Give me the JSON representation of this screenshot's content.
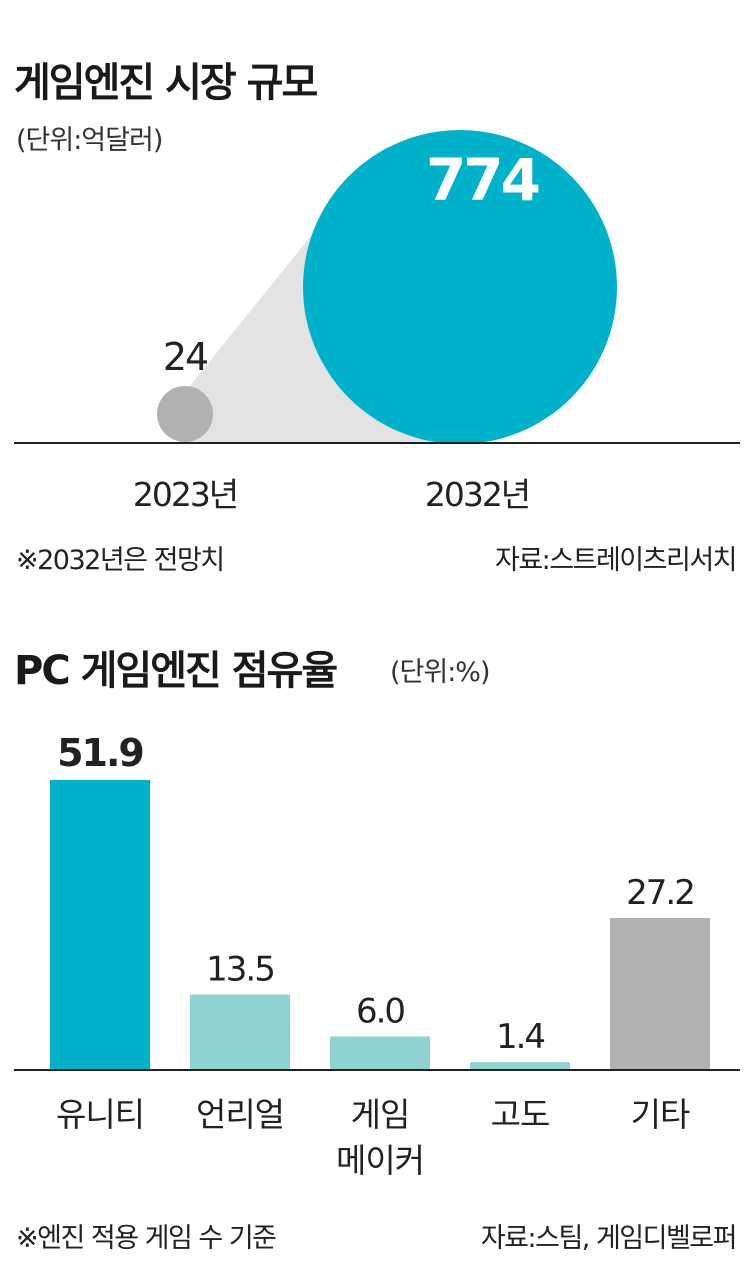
{
  "chart1": {
    "title": "게임엔진 시장 규모",
    "unit": "(단위:억달러)",
    "note": "※2032년은 전망치",
    "source": "자료:스트레이츠리서치",
    "colors": {
      "small": "#b1b1b3",
      "large": "#00b2c9",
      "cone": "#e3e3e3"
    },
    "chart_data": {
      "type": "bubble",
      "categories": [
        "2023년",
        "2032년"
      ],
      "values": [
        24,
        774
      ]
    }
  },
  "chart2": {
    "title": "PC 게임엔진 점유율",
    "unit": "(단위:%)",
    "note": "※엔진 적용 게임 수 기준",
    "source": "자료:스팀, 게임디벨로퍼",
    "colors": [
      "#00b2c9",
      "#8ed3cf",
      "#8ed3cf",
      "#8ed3cf",
      "#b1b1b3"
    ],
    "chart_data": {
      "type": "bar",
      "categories": [
        [
          "유니티"
        ],
        [
          "언리얼"
        ],
        [
          "게임",
          "메이커"
        ],
        [
          "고도"
        ],
        [
          "기타"
        ]
      ],
      "values": [
        "51.9",
        "13.5",
        "6.0",
        "1.4",
        "27.2"
      ]
    }
  }
}
